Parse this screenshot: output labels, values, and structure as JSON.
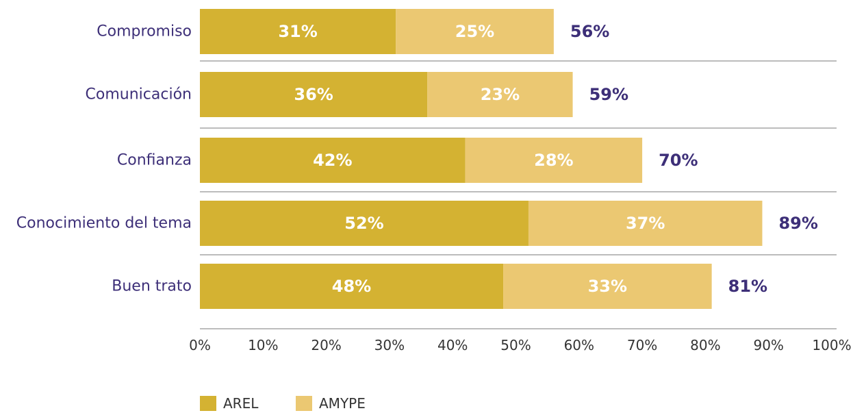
{
  "chart_data": {
    "type": "bar",
    "orientation": "horizontal",
    "stacked": true,
    "categories": [
      "Compromiso",
      "Comunicación",
      "Confianza",
      "Conocimiento del tema",
      "Buen trato"
    ],
    "series": [
      {
        "name": "AREL",
        "values": [
          31,
          36,
          42,
          52,
          48
        ],
        "color": "#d4b232"
      },
      {
        "name": "AMYPE",
        "values": [
          25,
          23,
          28,
          37,
          33
        ],
        "color": "#ebc872"
      }
    ],
    "segment_labels": [
      [
        "31%",
        "36%",
        "42%",
        "52%",
        "48%"
      ],
      [
        "25%",
        "23%",
        "28%",
        "37%",
        "33%"
      ]
    ],
    "totals": [
      56,
      59,
      70,
      89,
      81
    ],
    "total_labels": [
      "56%",
      "59%",
      "70%",
      "89%",
      "81%"
    ],
    "xlim": [
      0,
      100
    ],
    "xticks": [
      0,
      10,
      20,
      30,
      40,
      50,
      60,
      70,
      80,
      90,
      100
    ],
    "xtick_labels": [
      "0%",
      "10%",
      "20%",
      "30%",
      "40%",
      "50%",
      "60%",
      "70%",
      "80%",
      "90%",
      "100%"
    ],
    "title": "",
    "xlabel": "",
    "ylabel": "",
    "grid": false,
    "legend_position": "bottom-left",
    "colors": {
      "category_text": "#3d2f78",
      "total_text": "#3d2f78",
      "segment_text": "#ffffff",
      "axis_text": "#333333",
      "separator": "#7a7a7a"
    }
  }
}
